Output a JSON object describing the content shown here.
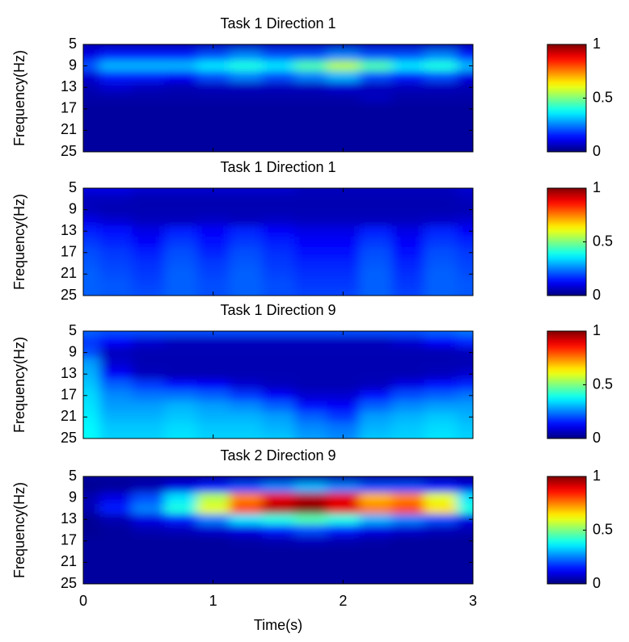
{
  "chart_data": [
    {
      "type": "heatmap",
      "title": "Task 1 Direction 1",
      "ylabel": "Frequency(Hz)",
      "colormap": "jet",
      "y_reversed": true,
      "x": [
        0,
        0.25,
        0.5,
        0.75,
        1,
        1.25,
        1.5,
        1.75,
        2,
        2.25,
        2.5,
        2.75,
        3
      ],
      "y": [
        5,
        7,
        9,
        11,
        13,
        15,
        17,
        19,
        21,
        23,
        25
      ],
      "values": [
        [
          0.05,
          0.05,
          0.05,
          0.05,
          0.05,
          0.05,
          0.05,
          0.05,
          0.05,
          0.05,
          0.05,
          0.05,
          0.05
        ],
        [
          0.1,
          0.15,
          0.15,
          0.15,
          0.2,
          0.25,
          0.2,
          0.2,
          0.25,
          0.2,
          0.2,
          0.25,
          0.15
        ],
        [
          0.2,
          0.3,
          0.3,
          0.3,
          0.35,
          0.4,
          0.35,
          0.45,
          0.55,
          0.45,
          0.35,
          0.4,
          0.3
        ],
        [
          0.08,
          0.15,
          0.15,
          0.12,
          0.2,
          0.25,
          0.2,
          0.25,
          0.3,
          0.2,
          0.15,
          0.2,
          0.1
        ],
        [
          0.05,
          0.08,
          0.06,
          0.05,
          0.06,
          0.06,
          0.06,
          0.06,
          0.08,
          0.06,
          0.06,
          0.06,
          0.05
        ],
        [
          0.04,
          0.04,
          0.04,
          0.04,
          0.04,
          0.04,
          0.04,
          0.04,
          0.04,
          0.06,
          0.04,
          0.04,
          0.04
        ],
        [
          0.03,
          0.03,
          0.03,
          0.03,
          0.03,
          0.03,
          0.03,
          0.03,
          0.03,
          0.03,
          0.03,
          0.03,
          0.03
        ],
        [
          0.03,
          0.03,
          0.03,
          0.03,
          0.03,
          0.03,
          0.03,
          0.03,
          0.03,
          0.03,
          0.03,
          0.03,
          0.03
        ],
        [
          0.03,
          0.03,
          0.03,
          0.03,
          0.03,
          0.03,
          0.03,
          0.03,
          0.03,
          0.03,
          0.03,
          0.03,
          0.03
        ],
        [
          0.03,
          0.03,
          0.03,
          0.03,
          0.03,
          0.03,
          0.03,
          0.03,
          0.03,
          0.03,
          0.03,
          0.03,
          0.03
        ],
        [
          0.03,
          0.03,
          0.03,
          0.03,
          0.03,
          0.03,
          0.03,
          0.03,
          0.03,
          0.03,
          0.03,
          0.03,
          0.03
        ]
      ],
      "xlim": [
        0,
        3
      ],
      "xticks": [
        0,
        1,
        2,
        3
      ],
      "ylim": [
        5,
        25
      ],
      "yticks": [
        5,
        9,
        13,
        17,
        21,
        25
      ],
      "colorbar": {
        "lim": [
          0,
          1
        ],
        "ticks": [
          0,
          0.5,
          1
        ]
      }
    },
    {
      "type": "heatmap",
      "title": "Task 1 Direction 1",
      "ylabel": "Frequency(Hz)",
      "colormap": "jet",
      "y_reversed": true,
      "x": [
        0,
        0.25,
        0.5,
        0.75,
        1,
        1.25,
        1.5,
        1.75,
        2,
        2.25,
        2.5,
        2.75,
        3
      ],
      "y": [
        5,
        7,
        9,
        11,
        13,
        15,
        17,
        19,
        21,
        23,
        25
      ],
      "values": [
        [
          0.1,
          0.1,
          0.08,
          0.08,
          0.08,
          0.08,
          0.08,
          0.06,
          0.06,
          0.06,
          0.06,
          0.06,
          0.08
        ],
        [
          0.06,
          0.06,
          0.05,
          0.05,
          0.05,
          0.05,
          0.05,
          0.05,
          0.05,
          0.05,
          0.05,
          0.05,
          0.06
        ],
        [
          0.06,
          0.05,
          0.05,
          0.05,
          0.05,
          0.05,
          0.05,
          0.05,
          0.05,
          0.05,
          0.05,
          0.05,
          0.05
        ],
        [
          0.1,
          0.08,
          0.06,
          0.06,
          0.07,
          0.06,
          0.07,
          0.06,
          0.06,
          0.06,
          0.06,
          0.07,
          0.08
        ],
        [
          0.15,
          0.14,
          0.1,
          0.15,
          0.12,
          0.16,
          0.12,
          0.1,
          0.1,
          0.15,
          0.1,
          0.16,
          0.12
        ],
        [
          0.18,
          0.16,
          0.12,
          0.18,
          0.14,
          0.18,
          0.15,
          0.12,
          0.12,
          0.18,
          0.12,
          0.18,
          0.16
        ],
        [
          0.2,
          0.18,
          0.15,
          0.2,
          0.16,
          0.2,
          0.17,
          0.14,
          0.14,
          0.2,
          0.14,
          0.2,
          0.18
        ],
        [
          0.21,
          0.19,
          0.17,
          0.21,
          0.18,
          0.21,
          0.18,
          0.16,
          0.16,
          0.21,
          0.16,
          0.21,
          0.19
        ],
        [
          0.22,
          0.2,
          0.18,
          0.22,
          0.19,
          0.22,
          0.19,
          0.17,
          0.17,
          0.22,
          0.17,
          0.22,
          0.2
        ],
        [
          0.22,
          0.21,
          0.19,
          0.22,
          0.2,
          0.22,
          0.2,
          0.18,
          0.18,
          0.22,
          0.18,
          0.22,
          0.21
        ],
        [
          0.22,
          0.21,
          0.2,
          0.22,
          0.2,
          0.22,
          0.2,
          0.19,
          0.19,
          0.22,
          0.19,
          0.22,
          0.21
        ]
      ],
      "xlim": [
        0,
        3
      ],
      "xticks": [
        0,
        1,
        2,
        3
      ],
      "ylim": [
        5,
        25
      ],
      "yticks": [
        5,
        9,
        13,
        17,
        21,
        25
      ],
      "colorbar": {
        "lim": [
          0,
          1
        ],
        "ticks": [
          0,
          0.5,
          1
        ]
      }
    },
    {
      "type": "heatmap",
      "title": "Task 1 Direction 9",
      "ylabel": "Frequency(Hz)",
      "colormap": "jet",
      "y_reversed": true,
      "x": [
        0,
        0.25,
        0.5,
        0.75,
        1,
        1.25,
        1.5,
        1.75,
        2,
        2.25,
        2.5,
        2.75,
        3
      ],
      "y": [
        5,
        7,
        9,
        11,
        13,
        15,
        17,
        19,
        21,
        23,
        25
      ],
      "values": [
        [
          0.22,
          0.2,
          0.2,
          0.2,
          0.2,
          0.2,
          0.2,
          0.2,
          0.2,
          0.2,
          0.2,
          0.22,
          0.24
        ],
        [
          0.18,
          0.12,
          0.08,
          0.06,
          0.06,
          0.06,
          0.06,
          0.06,
          0.06,
          0.06,
          0.08,
          0.12,
          0.16
        ],
        [
          0.2,
          0.06,
          0.05,
          0.05,
          0.05,
          0.05,
          0.05,
          0.05,
          0.05,
          0.05,
          0.05,
          0.05,
          0.06
        ],
        [
          0.28,
          0.08,
          0.05,
          0.05,
          0.05,
          0.05,
          0.05,
          0.05,
          0.05,
          0.05,
          0.05,
          0.05,
          0.05
        ],
        [
          0.3,
          0.12,
          0.06,
          0.05,
          0.05,
          0.05,
          0.05,
          0.05,
          0.05,
          0.05,
          0.05,
          0.06,
          0.08
        ],
        [
          0.32,
          0.22,
          0.18,
          0.14,
          0.12,
          0.08,
          0.06,
          0.05,
          0.05,
          0.06,
          0.1,
          0.14,
          0.16
        ],
        [
          0.34,
          0.26,
          0.24,
          0.24,
          0.22,
          0.18,
          0.12,
          0.08,
          0.08,
          0.14,
          0.2,
          0.22,
          0.24
        ],
        [
          0.35,
          0.28,
          0.28,
          0.3,
          0.28,
          0.26,
          0.22,
          0.14,
          0.12,
          0.22,
          0.26,
          0.28,
          0.28
        ],
        [
          0.36,
          0.3,
          0.3,
          0.32,
          0.3,
          0.3,
          0.28,
          0.22,
          0.18,
          0.28,
          0.3,
          0.32,
          0.3
        ],
        [
          0.37,
          0.32,
          0.32,
          0.34,
          0.32,
          0.32,
          0.3,
          0.26,
          0.24,
          0.3,
          0.32,
          0.34,
          0.32
        ],
        [
          0.38,
          0.33,
          0.33,
          0.35,
          0.33,
          0.33,
          0.32,
          0.28,
          0.26,
          0.32,
          0.33,
          0.35,
          0.33
        ]
      ],
      "xlim": [
        0,
        3
      ],
      "xticks": [
        0,
        1,
        2,
        3
      ],
      "ylim": [
        5,
        25
      ],
      "yticks": [
        5,
        9,
        13,
        17,
        21,
        25
      ],
      "colorbar": {
        "lim": [
          0,
          1
        ],
        "ticks": [
          0,
          0.5,
          1
        ]
      }
    },
    {
      "type": "heatmap",
      "title": "Task 2 Direction 9",
      "ylabel": "Frequency(Hz)",
      "xlabel": "Time(s)",
      "colormap": "jet",
      "y_reversed": true,
      "x": [
        0,
        0.25,
        0.5,
        0.75,
        1,
        1.25,
        1.5,
        1.75,
        2,
        2.25,
        2.5,
        2.75,
        3
      ],
      "y": [
        5,
        7,
        9,
        11,
        13,
        15,
        17,
        19,
        21,
        23,
        25
      ],
      "values": [
        [
          0.03,
          0.03,
          0.03,
          0.03,
          0.03,
          0.03,
          0.03,
          0.03,
          0.03,
          0.03,
          0.03,
          0.03,
          0.03
        ],
        [
          0.02,
          0.03,
          0.05,
          0.1,
          0.15,
          0.2,
          0.25,
          0.3,
          0.25,
          0.2,
          0.2,
          0.15,
          0.1
        ],
        [
          0.05,
          0.1,
          0.2,
          0.35,
          0.55,
          0.75,
          0.9,
          0.95,
          0.9,
          0.7,
          0.75,
          0.6,
          0.35
        ],
        [
          0.05,
          0.15,
          0.25,
          0.4,
          0.6,
          0.8,
          0.95,
          1.0,
          0.9,
          0.75,
          0.8,
          0.65,
          0.4
        ],
        [
          0.02,
          0.05,
          0.1,
          0.15,
          0.25,
          0.35,
          0.4,
          0.45,
          0.4,
          0.3,
          0.25,
          0.2,
          0.1
        ],
        [
          0.02,
          0.03,
          0.05,
          0.06,
          0.08,
          0.1,
          0.15,
          0.2,
          0.15,
          0.1,
          0.08,
          0.06,
          0.05
        ],
        [
          0.03,
          0.03,
          0.03,
          0.03,
          0.03,
          0.04,
          0.05,
          0.06,
          0.05,
          0.04,
          0.03,
          0.03,
          0.03
        ],
        [
          0.03,
          0.03,
          0.03,
          0.03,
          0.03,
          0.03,
          0.03,
          0.03,
          0.03,
          0.03,
          0.03,
          0.03,
          0.03
        ],
        [
          0.03,
          0.03,
          0.03,
          0.03,
          0.03,
          0.03,
          0.03,
          0.03,
          0.03,
          0.03,
          0.03,
          0.03,
          0.03
        ],
        [
          0.03,
          0.03,
          0.03,
          0.03,
          0.03,
          0.03,
          0.03,
          0.03,
          0.03,
          0.03,
          0.03,
          0.03,
          0.03
        ],
        [
          0.03,
          0.03,
          0.03,
          0.03,
          0.03,
          0.03,
          0.03,
          0.03,
          0.03,
          0.03,
          0.03,
          0.03,
          0.03
        ]
      ],
      "xlim": [
        0,
        3
      ],
      "xticks": [
        0,
        1,
        2,
        3
      ],
      "ylim": [
        5,
        25
      ],
      "yticks": [
        5,
        9,
        13,
        17,
        21,
        25
      ],
      "colorbar": {
        "lim": [
          0,
          1
        ],
        "ticks": [
          0,
          0.5,
          1
        ]
      }
    }
  ]
}
